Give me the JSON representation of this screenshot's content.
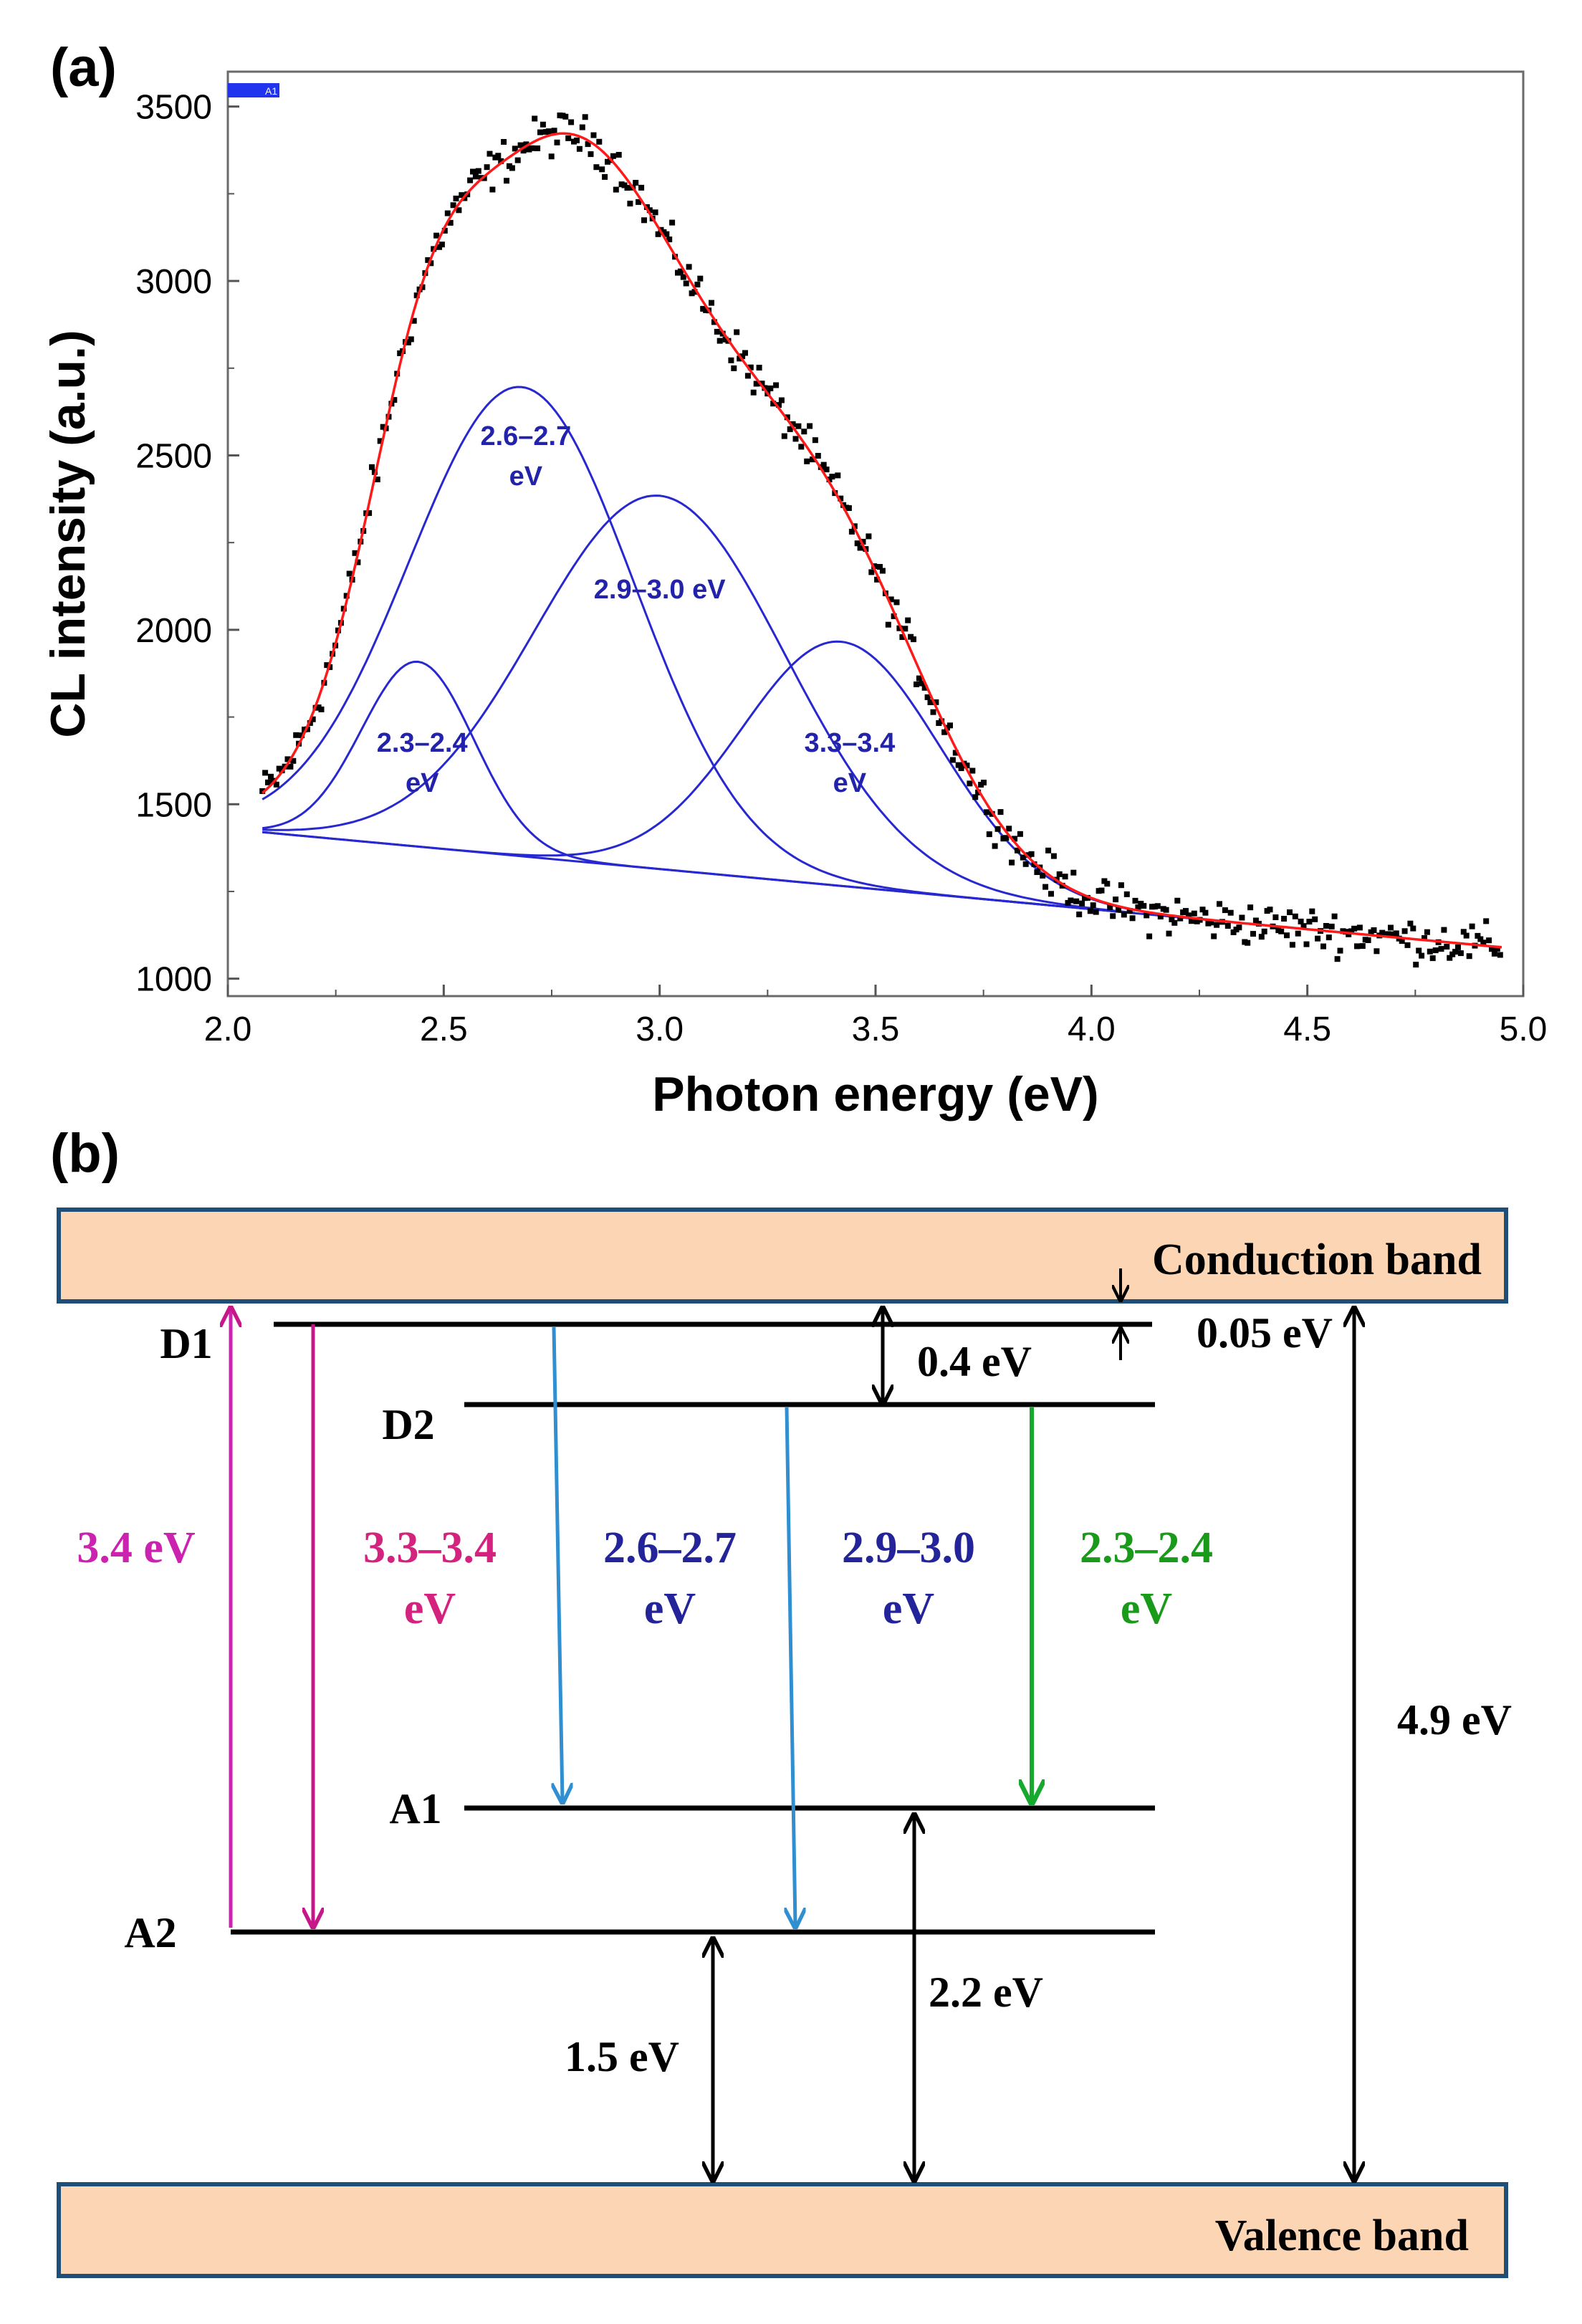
{
  "panel_a": {
    "label": "(a)",
    "legend_tag": "A1"
  },
  "panel_b": {
    "label": "(b)",
    "conduction_band": "Conduction band",
    "valence_band": "Valence band",
    "levels": {
      "d1": "D1",
      "d2": "D2",
      "a1": "A1",
      "a2": "A2"
    },
    "energies": {
      "gap_d1_cb": "0.05 eV",
      "gap_d2": "0.4 eV",
      "bandgap": "4.9 eV",
      "a1_vb": "2.2 eV",
      "a2_vb": "1.5 eV",
      "excitation": "3.4 eV"
    },
    "transitions": [
      {
        "line1": "3.3–3.4",
        "line2": "eV",
        "color": "#d4237f"
      },
      {
        "line1": "2.6–2.7",
        "line2": "eV",
        "color": "#24249a"
      },
      {
        "line1": "2.9–3.0",
        "line2": "eV",
        "color": "#24249a"
      },
      {
        "line1": "2.3–2.4",
        "line2": "eV",
        "color": "#1a9a1a"
      }
    ],
    "colors": {
      "band_fill": "#fcd5b4",
      "band_border": "#1f4e79",
      "excitation": "#cc22b0",
      "emission_magenta": "#c6168a",
      "emission_blue": "#2f8fd0",
      "emission_green": "#17a82e"
    }
  },
  "chart_data": {
    "type": "scatter",
    "title": "",
    "xlabel": "Photon energy (eV)",
    "ylabel": "CL intensity (a.u.)",
    "xlim": [
      2.0,
      5.0
    ],
    "ylim": [
      950,
      3600
    ],
    "x_ticks": [
      "2.0",
      "2.5",
      "3.0",
      "3.5",
      "4.0",
      "4.5",
      "5.0"
    ],
    "y_ticks": [
      "1000",
      "1500",
      "2000",
      "2500",
      "3000",
      "3500"
    ],
    "baseline": {
      "x": [
        2.08,
        4.95
      ],
      "y": [
        1420,
        1090
      ]
    },
    "components": [
      {
        "label1": "2.3–2.4",
        "label2": "eV",
        "center": 2.44,
        "peak_height": 530,
        "sigma": 0.13,
        "label_x": 2.45,
        "label_y": 1650
      },
      {
        "label1": "2.6–2.7",
        "label2": "eV",
        "center": 2.68,
        "peak_height": 1345,
        "sigma": 0.26,
        "label_x": 2.69,
        "label_y": 2530
      },
      {
        "label1": "2.9–3.0 eV",
        "label2": "",
        "center": 3.0,
        "peak_height": 1070,
        "sigma": 0.29,
        "label_x": 3.0,
        "label_y": 2090
      },
      {
        "label1": "3.3–3.4",
        "label2": "eV",
        "center": 3.42,
        "peak_height": 700,
        "sigma": 0.23,
        "label_x": 3.44,
        "label_y": 1650
      }
    ],
    "grid": false,
    "colors": {
      "data": "#000000",
      "fit": "#ff1a1a",
      "components": "#2828d0"
    }
  }
}
